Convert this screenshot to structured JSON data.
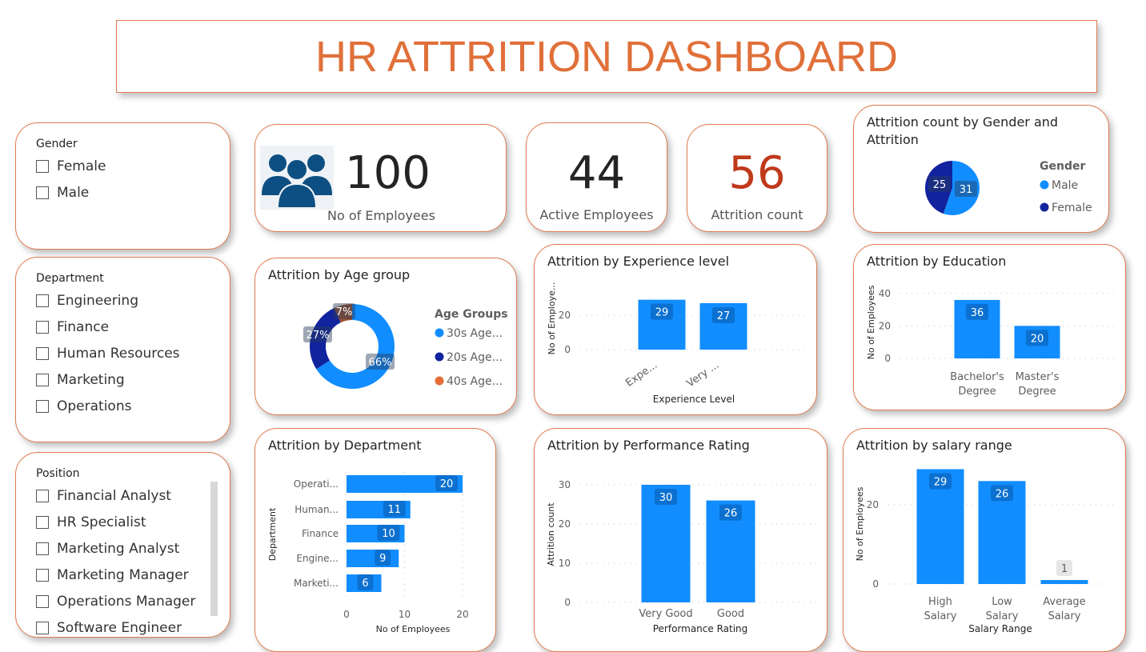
{
  "header": {
    "title": "HR ATTRITION DASHBOARD"
  },
  "colors": {
    "accent": "#e0703a",
    "bar": "#118dff",
    "dark": "#12239e",
    "brown": "#a0522d",
    "orange": "#e66c37",
    "attrition": "#c0391b"
  },
  "slicers": {
    "gender": {
      "title": "Gender",
      "options": [
        "Female",
        "Male"
      ]
    },
    "department": {
      "title": "Department",
      "options": [
        "Engineering",
        "Finance",
        "Human Resources",
        "Marketing",
        "Operations"
      ]
    },
    "position": {
      "title": "Position",
      "options": [
        "Financial Analyst",
        "HR Specialist",
        "Marketing Analyst",
        "Marketing Manager",
        "Operations Manager",
        "Software Engineer"
      ]
    }
  },
  "kpis": {
    "employees": {
      "value": "100",
      "label": "No of Employees",
      "icon": "people-group-icon"
    },
    "active": {
      "value": "44",
      "label": "Active Employees"
    },
    "attrition": {
      "value": "56",
      "label": "Attrition count"
    }
  },
  "chart_data": [
    {
      "id": "gender",
      "type": "pie",
      "title": "Attrition count by Gender and Attrition",
      "legend_title": "Gender",
      "legend_position": "right",
      "categories": [
        "Male",
        "Female"
      ],
      "values": [
        31,
        25
      ],
      "colors": [
        "#118dff",
        "#12239e"
      ]
    },
    {
      "id": "age",
      "type": "pie",
      "donut": true,
      "title": "Attrition by Age group",
      "legend_title": "Age Groups",
      "legend_position": "right",
      "categories": [
        "30s Age...",
        "20s Age...",
        "40s Age..."
      ],
      "values": [
        66,
        27,
        7
      ],
      "labels": [
        "66%",
        "27%",
        "7%"
      ],
      "colors": [
        "#118dff",
        "#12239e",
        "#e66c37"
      ]
    },
    {
      "id": "experience",
      "type": "bar",
      "title": "Attrition by Experience level",
      "xlabel": "Experience Level",
      "ylabel": "No of Employe...",
      "categories": [
        "Expe...",
        "Very ..."
      ],
      "values": [
        29,
        27
      ],
      "ylim": [
        0,
        32
      ],
      "yticks": [
        0,
        20
      ],
      "grid": true
    },
    {
      "id": "education",
      "type": "bar",
      "title": "Attrition by Education",
      "xlabel": "",
      "ylabel": "No of Employees",
      "categories": [
        "Bachelor's Degree",
        "Master's Degree"
      ],
      "values": [
        36,
        20
      ],
      "ylim": [
        0,
        45
      ],
      "yticks": [
        0,
        20,
        40
      ],
      "grid": true
    },
    {
      "id": "department",
      "type": "bar",
      "orientation": "horizontal",
      "title": "Attrition by Department",
      "xlabel": "No of Employees",
      "ylabel": "Department",
      "categories": [
        "Operati...",
        "Human...",
        "Finance",
        "Engine...",
        "Marketi..."
      ],
      "values": [
        20,
        11,
        10,
        9,
        6
      ],
      "xlim": [
        0,
        20
      ],
      "xticks": [
        0,
        10,
        20
      ],
      "grid": true
    },
    {
      "id": "performance",
      "type": "bar",
      "title": "Attrition by Performance Rating",
      "xlabel": "Performance Rating",
      "ylabel": "Attrition count",
      "categories": [
        "Very Good",
        "Good"
      ],
      "values": [
        30,
        26
      ],
      "ylim": [
        0,
        31
      ],
      "yticks": [
        0,
        10,
        20,
        30
      ],
      "grid": true
    },
    {
      "id": "salary",
      "type": "bar",
      "title": "Attrition by salary range",
      "xlabel": "Salary Range",
      "ylabel": "No of Employees",
      "categories": [
        "High Salary",
        "Low Salary",
        "Average Salary"
      ],
      "values": [
        29,
        26,
        1
      ],
      "ylim": [
        0,
        30
      ],
      "yticks": [
        0,
        20
      ],
      "grid": true
    }
  ]
}
